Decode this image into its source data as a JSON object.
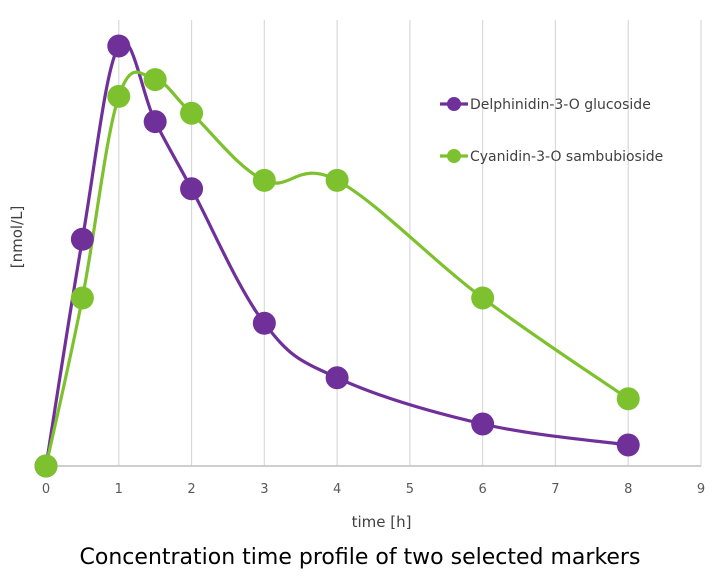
{
  "chart_data": {
    "type": "line",
    "title": "Concentration time profile of two selected markers",
    "xlabel": "time [h]",
    "ylabel": "[nmol/L]",
    "xlim": [
      0,
      9
    ],
    "ylim": [
      0,
      1.0
    ],
    "x_ticks": [
      "0",
      "1",
      "2",
      "3",
      "4",
      "5",
      "6",
      "7",
      "8",
      "9"
    ],
    "y_ticks_shown": false,
    "grid": "vertical",
    "legend_position": "top-right",
    "smooth": true,
    "series": [
      {
        "name": "Delphinidin-3-O glucoside",
        "color": "#70309a",
        "x": [
          0,
          0.5,
          1,
          1.5,
          2,
          3,
          4,
          6,
          8
        ],
        "y": [
          0,
          0.54,
          1.0,
          0.82,
          0.66,
          0.34,
          0.21,
          0.1,
          0.05
        ]
      },
      {
        "name": "Cyanidin-3-O sambubioside",
        "color": "#7dc22e",
        "x": [
          0,
          0.5,
          1,
          1.5,
          2,
          3,
          4,
          6,
          8
        ],
        "y": [
          0,
          0.4,
          0.88,
          0.92,
          0.84,
          0.68,
          0.68,
          0.4,
          0.16
        ]
      }
    ]
  }
}
